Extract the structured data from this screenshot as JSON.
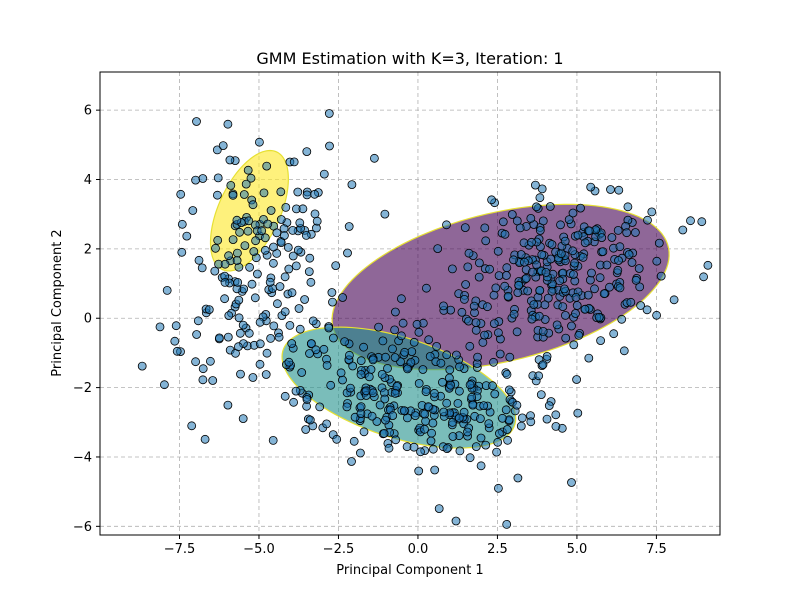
{
  "chart_data": {
    "type": "scatter",
    "title": "GMM Estimation with K=3, Iteration: 1",
    "xlabel": "Principal Component 1",
    "ylabel": "Principal Component 2",
    "xlim": [
      -10,
      9.5
    ],
    "ylim": [
      -6.25,
      7.1
    ],
    "xticks": [
      -7.5,
      -5.0,
      -2.5,
      0.0,
      2.5,
      5.0,
      7.5
    ],
    "xtick_labels": [
      "−7.5",
      "−5.0",
      "−2.5",
      "0.0",
      "2.5",
      "5.0",
      "7.5"
    ],
    "yticks": [
      -6,
      -4,
      -2,
      0,
      2,
      4,
      6
    ],
    "ytick_labels": [
      "−6",
      "−4",
      "−2",
      "0",
      "2",
      "4",
      "6"
    ],
    "grid": true,
    "point_color": "#1f77b4",
    "ellipse_edge_color": "#e6e033",
    "components": [
      {
        "color": "#440154",
        "center": [
          2.6,
          0.9
        ],
        "width": 10.8,
        "height": 4.3,
        "angle": 12
      },
      {
        "color": "#21918c",
        "center": [
          -0.6,
          -2.0
        ],
        "width": 7.6,
        "height": 2.9,
        "angle": -16
      },
      {
        "color": "#fde725",
        "center": [
          -5.3,
          3.1
        ],
        "width": 1.9,
        "height": 3.8,
        "angle": -28
      }
    ],
    "clusters": [
      {
        "n": 300,
        "mean": [
          4.3,
          1.2
        ],
        "std": [
          1.7,
          1.3
        ],
        "corr": 0.3
      },
      {
        "n": 300,
        "mean": [
          -0.3,
          -2.1
        ],
        "std": [
          2.1,
          1.1
        ],
        "corr": -0.3
      },
      {
        "n": 200,
        "mean": [
          -5.2,
          1.5
        ],
        "std": [
          1.3,
          2.0
        ],
        "corr": 0.25
      }
    ]
  }
}
